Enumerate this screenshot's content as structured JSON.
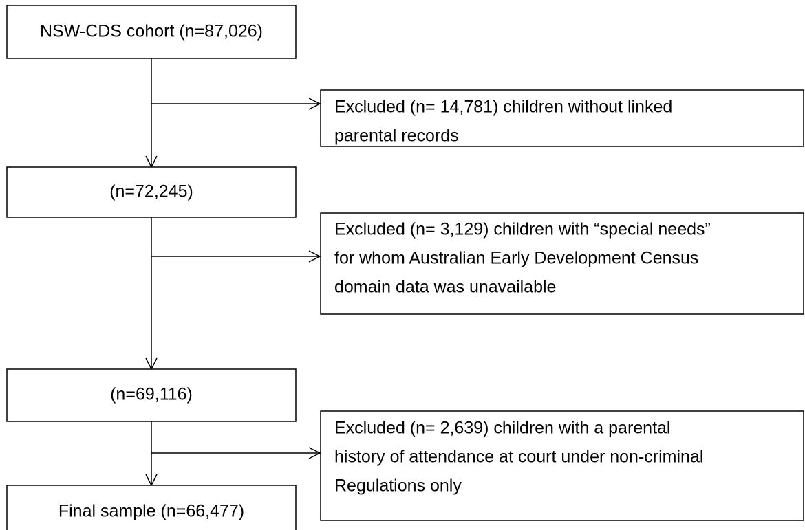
{
  "nodes": [
    {
      "label": "NSW-CDS cohort (n=87,026)"
    },
    {
      "label": "(n=72,245)"
    },
    {
      "label": "(n=69,116)"
    },
    {
      "label": "Final sample (n=66,477)"
    }
  ],
  "exclusions": [
    {
      "lines": [
        "Excluded (n= 14,781) children without linked",
        "parental records"
      ]
    },
    {
      "lines": [
        "Excluded (n= 3,129) children with “special needs”",
        "for whom Australian Early Development Census",
        "domain data was unavailable"
      ]
    },
    {
      "lines": [
        "Excluded (n= 2,639) children with a parental",
        "history of attendance at court under non-criminal",
        "Regulations only"
      ]
    }
  ]
}
